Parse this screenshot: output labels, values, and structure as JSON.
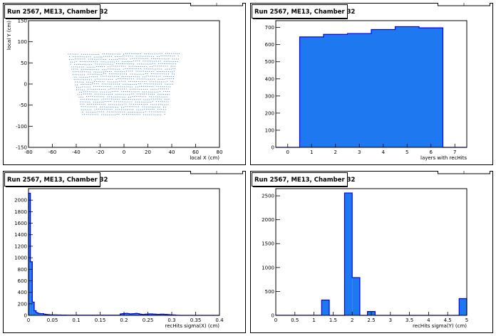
{
  "chart_data": [
    {
      "type": "scatter",
      "title": "Run 2567, ME13, Chamber 32",
      "xlabel": "local X (cm)",
      "ylabel": "local Y (cm)",
      "xlim": [
        -80,
        80
      ],
      "ylim": [
        -150,
        150
      ],
      "xticks": [
        -80,
        -60,
        -40,
        -20,
        0,
        20,
        40,
        60,
        80
      ],
      "yticks": [
        -150,
        -100,
        -50,
        0,
        50,
        100,
        150
      ],
      "color": "#3f7fbf",
      "rows": [
        {
          "y": 72,
          "half_width": 47
        },
        {
          "y": 66,
          "half_width": 46
        },
        {
          "y": 60,
          "half_width": 46
        },
        {
          "y": 54,
          "half_width": 45
        },
        {
          "y": 48,
          "half_width": 45
        },
        {
          "y": 42,
          "half_width": 44
        },
        {
          "y": 36,
          "half_width": 44
        },
        {
          "y": 30,
          "half_width": 43
        },
        {
          "y": 24,
          "half_width": 43
        },
        {
          "y": 18,
          "half_width": 42
        },
        {
          "y": 12,
          "half_width": 42
        },
        {
          "y": 6,
          "half_width": 41
        },
        {
          "y": 0,
          "half_width": 41
        },
        {
          "y": -6,
          "half_width": 40
        },
        {
          "y": -12,
          "half_width": 40
        },
        {
          "y": -18,
          "half_width": 39
        },
        {
          "y": -24,
          "half_width": 39
        },
        {
          "y": -30,
          "half_width": 38
        },
        {
          "y": -36,
          "half_width": 38
        },
        {
          "y": -42,
          "half_width": 37
        },
        {
          "y": -48,
          "half_width": 37
        },
        {
          "y": -54,
          "half_width": 36
        },
        {
          "y": -60,
          "half_width": 36
        },
        {
          "y": -66,
          "half_width": 35
        },
        {
          "y": -72,
          "half_width": 35
        }
      ]
    },
    {
      "type": "bar",
      "title": "Run 2567, ME13, Chamber 32",
      "xlabel": "layers with recHits",
      "ylabel": "",
      "xlim": [
        -0.5,
        7.5
      ],
      "ylim": [
        0,
        740
      ],
      "xticks": [
        0,
        1,
        2,
        3,
        4,
        5,
        6,
        7
      ],
      "yticks": [
        0,
        100,
        200,
        300,
        400,
        500,
        600,
        700
      ],
      "bin_width": 1,
      "bin_centers": [
        0,
        1,
        2,
        3,
        4,
        5,
        6,
        7
      ],
      "values": [
        0,
        645,
        660,
        665,
        688,
        705,
        698,
        0
      ],
      "color": "#1e78f0"
    },
    {
      "type": "bar",
      "title": "Run 2567, ME13, Chamber 32",
      "xlabel": "recHits sigma(X) (cm)",
      "ylabel": "",
      "xlim": [
        0,
        0.4
      ],
      "ylim": [
        0,
        2200
      ],
      "xticks": [
        0,
        0.05,
        0.1,
        0.15,
        0.2,
        0.25,
        0.3,
        0.35,
        0.4
      ],
      "xtick_labels": [
        "0",
        "0.05",
        "0.1",
        "0.15",
        "0.2",
        "0.25",
        "0.3",
        "0.35",
        "0.4"
      ],
      "yticks": [
        0,
        200,
        400,
        600,
        800,
        1000,
        1200,
        1400,
        1600,
        1800,
        2000
      ],
      "bin_width": 0.004,
      "values": [
        2120,
        930,
        230,
        80,
        45,
        35,
        30,
        30,
        20,
        15,
        12,
        10,
        10,
        8,
        8,
        6,
        6,
        5,
        5,
        5,
        4,
        4,
        4,
        4,
        4,
        4,
        4,
        4,
        4,
        4,
        4,
        4,
        4,
        4,
        4,
        4,
        4,
        4,
        4,
        4,
        4,
        4,
        4,
        4,
        4,
        4,
        4,
        4,
        25,
        30,
        32,
        35,
        30,
        25,
        28,
        30,
        35,
        30,
        22,
        18,
        15,
        20,
        22,
        25,
        25,
        22,
        20,
        18,
        18,
        20,
        20,
        18,
        15,
        12,
        10,
        8,
        6,
        4,
        2,
        0,
        0,
        0,
        0,
        0,
        0,
        0,
        0,
        0,
        0,
        0,
        0,
        0,
        0,
        0,
        0,
        0,
        0,
        0,
        0,
        0
      ],
      "color": "#1e78f0"
    },
    {
      "type": "bar",
      "title": "Run 2567, ME13, Chamber 32",
      "xlabel": "recHits sigma(Y) (cm)",
      "ylabel": "",
      "xlim": [
        0,
        5
      ],
      "ylim": [
        0,
        2650
      ],
      "xticks": [
        0,
        0.5,
        1,
        1.5,
        2,
        2.5,
        3,
        3.5,
        4,
        4.5,
        5
      ],
      "xtick_labels": [
        "0",
        "0.5",
        "1",
        "1.5",
        "2",
        "2.5",
        "3",
        "3.5",
        "4",
        "4.5",
        "5"
      ],
      "yticks": [
        0,
        500,
        1000,
        1500,
        2000,
        2500
      ],
      "bin_width": 0.2,
      "values": [
        3,
        3,
        3,
        3,
        3,
        3,
        320,
        0,
        0,
        2560,
        790,
        0,
        80,
        0,
        0,
        0,
        0,
        0,
        0,
        0,
        0,
        0,
        0,
        0,
        350
      ],
      "color": "#1e78f0"
    }
  ]
}
